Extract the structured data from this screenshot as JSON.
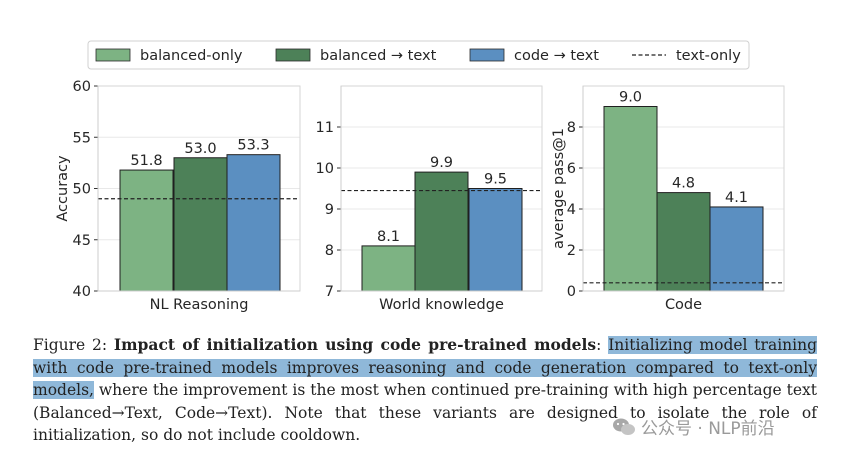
{
  "legend": {
    "items": [
      {
        "label": "balanced-only",
        "kind": "patch",
        "color": "#7db383"
      },
      {
        "label": "balanced → text",
        "kind": "patch",
        "color": "#4d8158"
      },
      {
        "label": "code → text",
        "kind": "patch",
        "color": "#5b8fc1"
      },
      {
        "label": "text-only",
        "kind": "dashed-line",
        "color": "#222222"
      }
    ]
  },
  "chart_data": [
    {
      "type": "bar",
      "title": "",
      "xlabel": "NL Reasoning",
      "ylabel": "Accuracy",
      "ylim": [
        40,
        60
      ],
      "yticks": [
        40,
        45,
        50,
        55,
        60
      ],
      "series": [
        {
          "name": "balanced-only",
          "value": 51.8,
          "label": "51.8",
          "color": "#7db383"
        },
        {
          "name": "balanced → text",
          "value": 53.0,
          "label": "53.0",
          "color": "#4d8158"
        },
        {
          "name": "code → text",
          "value": 53.3,
          "label": "53.3",
          "color": "#5b8fc1"
        }
      ],
      "reference_line": {
        "name": "text-only",
        "value": 49.0
      }
    },
    {
      "type": "bar",
      "title": "",
      "xlabel": "World knowledge",
      "ylabel": "",
      "ylim": [
        7,
        12
      ],
      "yticks": [
        7,
        8,
        9,
        10,
        11
      ],
      "series": [
        {
          "name": "balanced-only",
          "value": 8.1,
          "label": "8.1",
          "color": "#7db383"
        },
        {
          "name": "balanced → text",
          "value": 9.9,
          "label": "9.9",
          "color": "#4d8158"
        },
        {
          "name": "code → text",
          "value": 9.5,
          "label": "9.5",
          "color": "#5b8fc1"
        }
      ],
      "reference_line": {
        "name": "text-only",
        "value": 9.45
      }
    },
    {
      "type": "bar",
      "title": "",
      "xlabel": "Code",
      "ylabel": "average pass@1",
      "ylim": [
        0,
        10
      ],
      "yticks": [
        0,
        2,
        4,
        6,
        8
      ],
      "series": [
        {
          "name": "balanced-only",
          "value": 9.0,
          "label": "9.0",
          "color": "#7db383"
        },
        {
          "name": "balanced → text",
          "value": 4.8,
          "label": "4.8",
          "color": "#4d8158"
        },
        {
          "name": "code → text",
          "value": 4.1,
          "label": "4.1",
          "color": "#5b8fc1"
        }
      ],
      "reference_line": {
        "name": "text-only",
        "value": 0.4
      }
    }
  ],
  "caption": {
    "prefix": "Figure 2: ",
    "bold": "Impact of initialization using code pre-trained models",
    "colon": ": ",
    "highlighted": "Initializing model training with code pre-trained models improves reasoning and code generation compared to text-only models,",
    "rest": " where the improvement is the most when continued pre-training with high percentage text (Balanced→Text, Code→Text). Note that these variants are designed to isolate the role of initialization, so do not include cooldown."
  },
  "watermark": {
    "text": "公众号 · NLP前沿"
  }
}
